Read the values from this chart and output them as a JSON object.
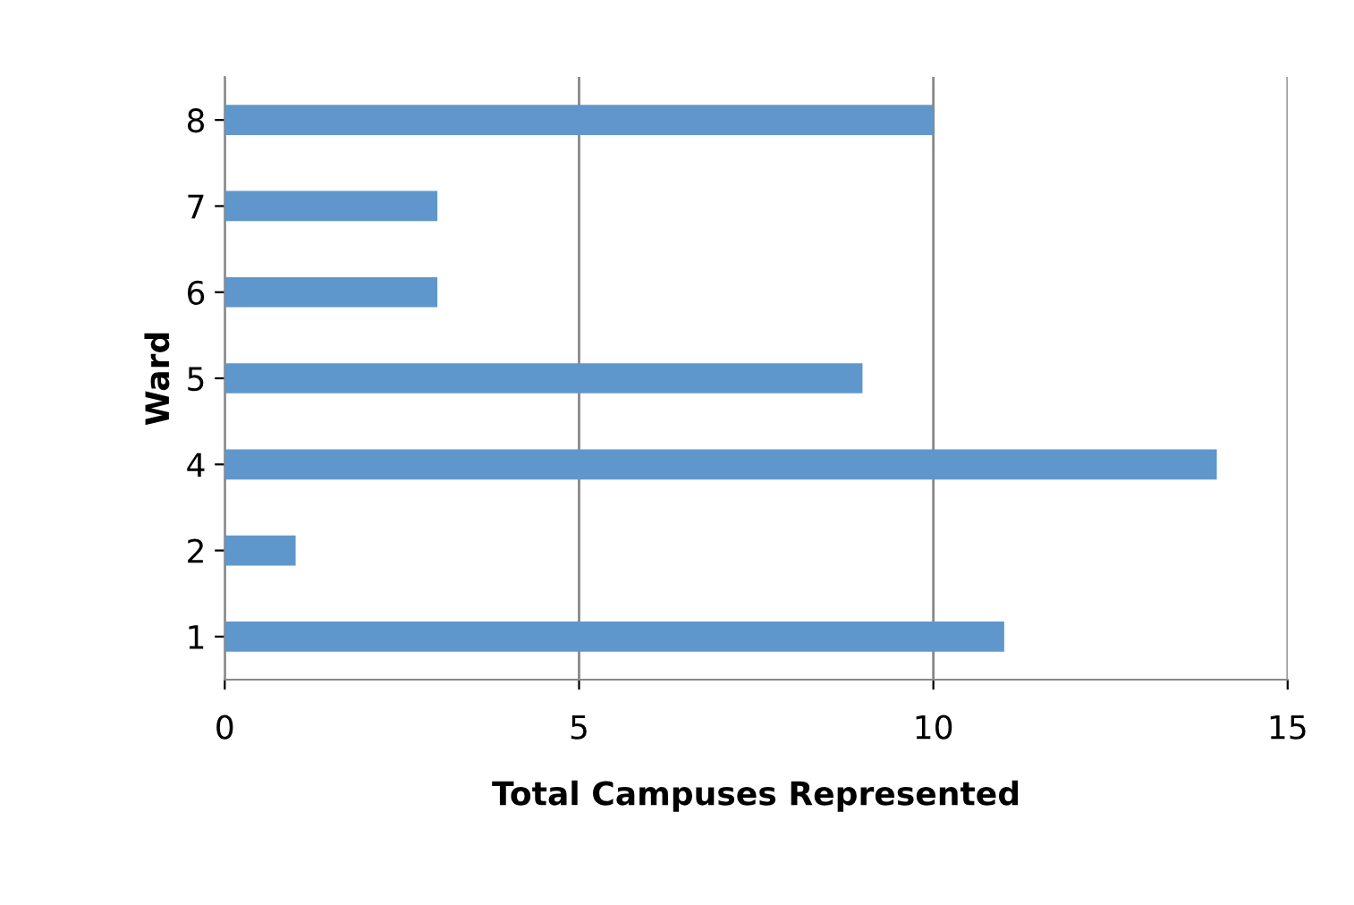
{
  "chart_data": {
    "type": "bar",
    "orientation": "horizontal",
    "xlabel": "Total Campuses Represented",
    "ylabel": "Ward",
    "categories": [
      "8",
      "7",
      "6",
      "5",
      "4",
      "2",
      "1"
    ],
    "values": [
      10,
      3,
      3,
      9,
      14,
      1,
      11
    ],
    "color": "#5f97cc",
    "xlim": [
      0,
      15
    ],
    "xticks": [
      0,
      5,
      10,
      15
    ],
    "grid": "x",
    "legend": false
  }
}
